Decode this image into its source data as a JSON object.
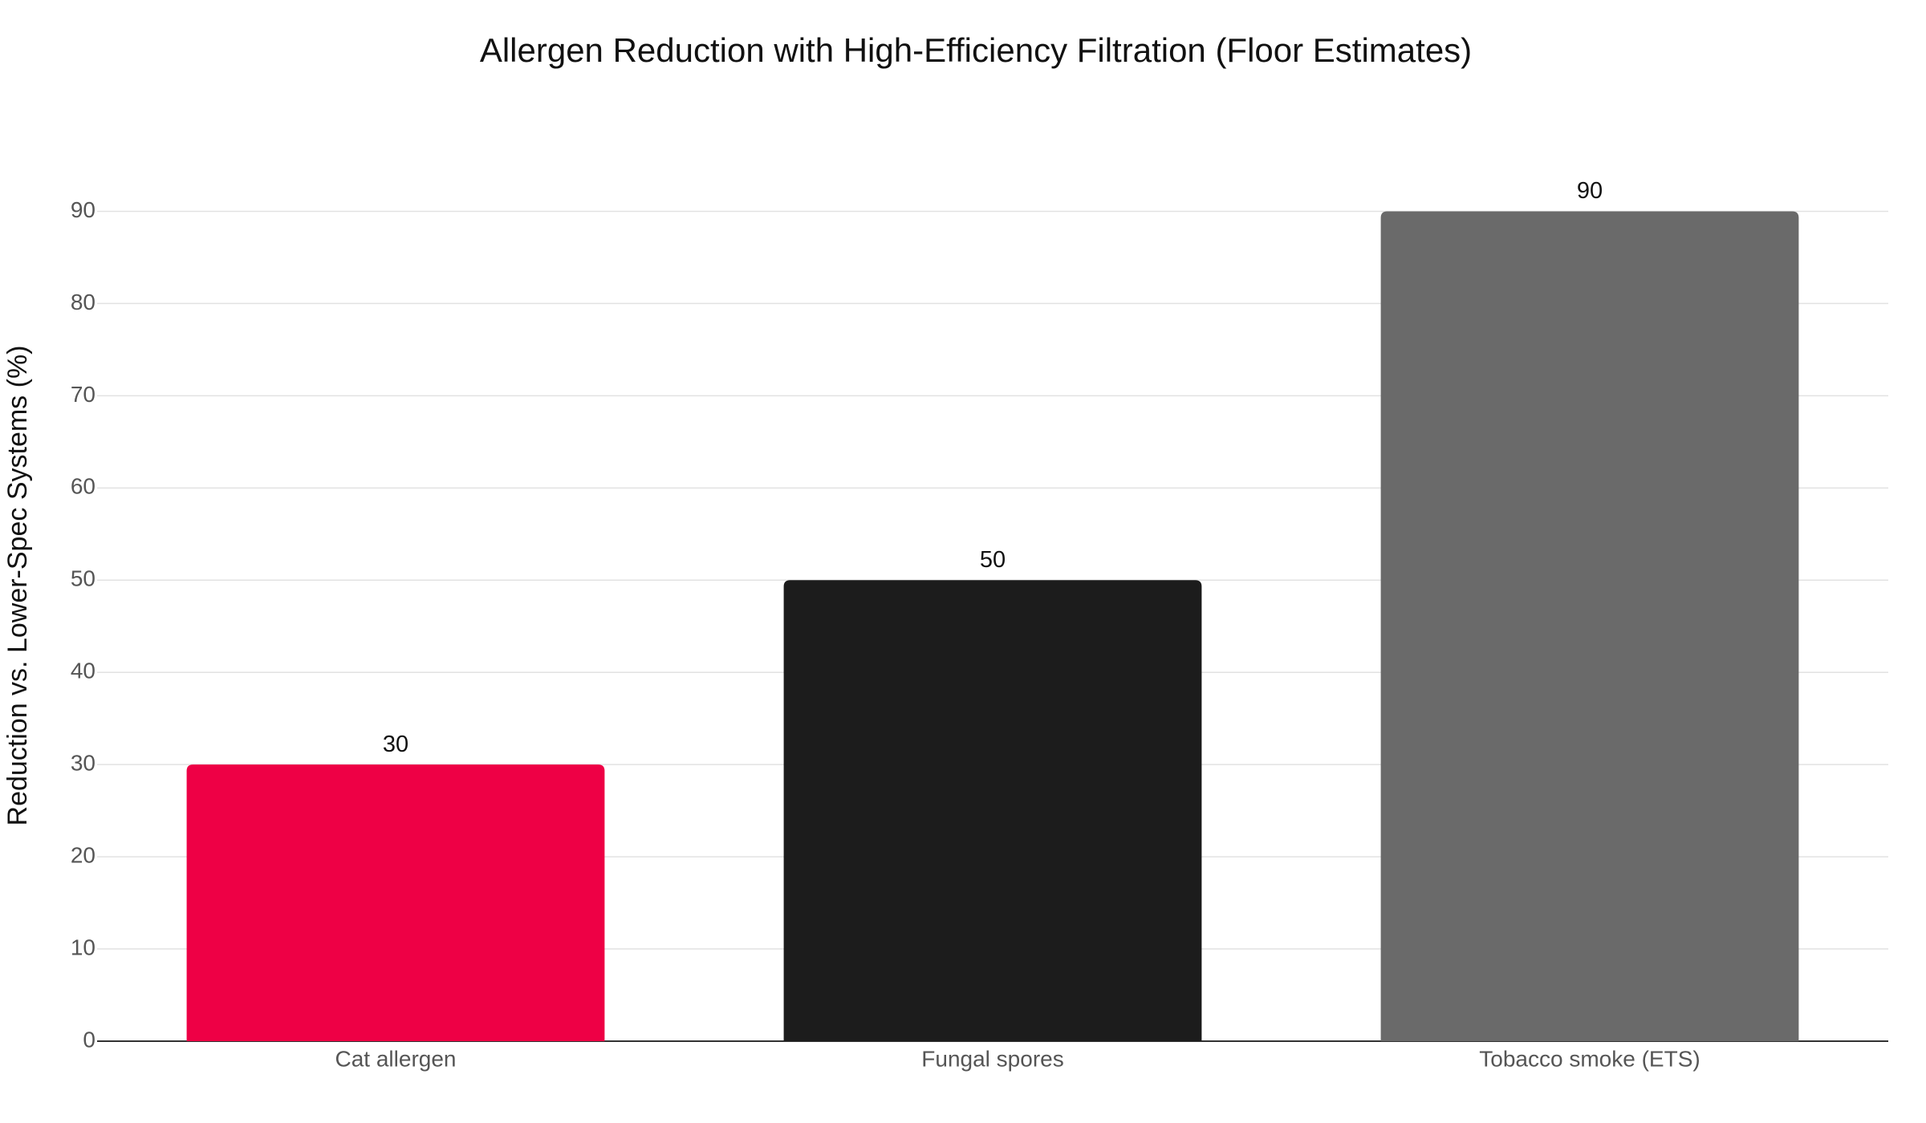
{
  "chart_data": {
    "type": "bar",
    "title": "Allergen Reduction with High-Efficiency Filtration (Floor Estimates)",
    "y_label": "Reduction vs. Lower-Spec Systems (%)",
    "categories": [
      "Cat allergen",
      "Fungal spores",
      "Tobacco smoke (ETS)"
    ],
    "values": [
      30,
      50,
      90
    ],
    "colors": [
      "#ee0045",
      "#1c1c1c",
      "#6a6a6a"
    ],
    "ylim": [
      0,
      95
    ],
    "yticks": [
      0,
      10,
      20,
      30,
      40,
      50,
      60,
      70,
      80,
      90
    ],
    "grid": true
  }
}
